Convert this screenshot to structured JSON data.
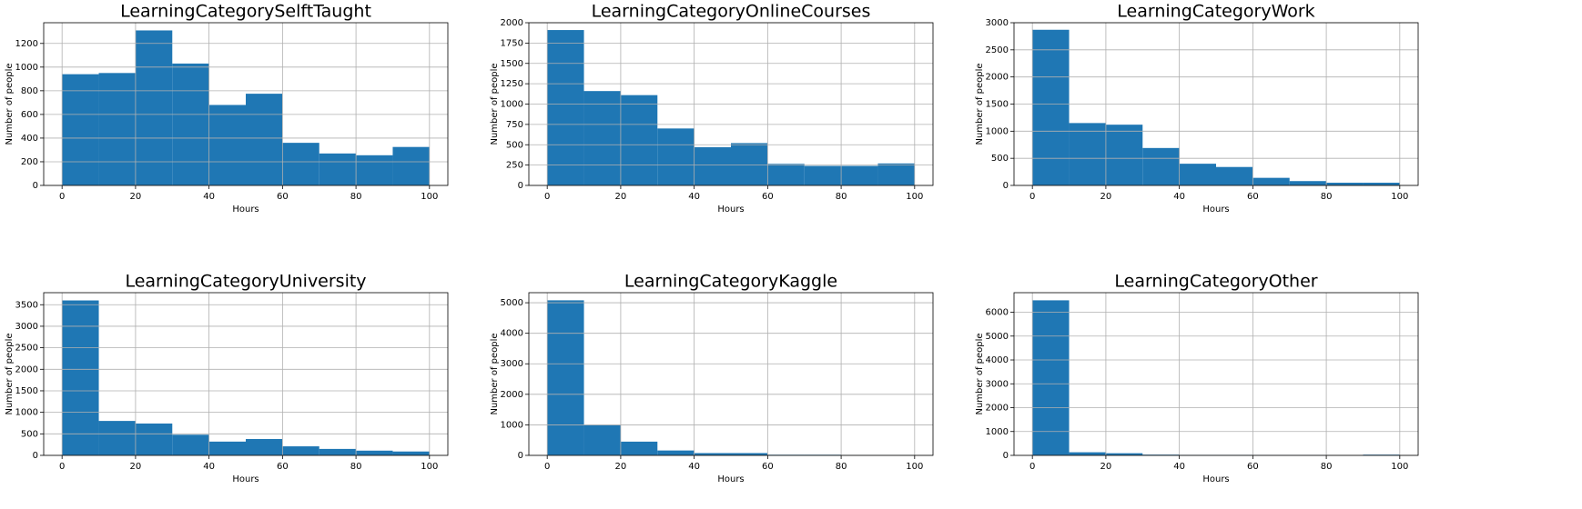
{
  "chart_data": [
    {
      "type": "histogram",
      "title": "LearningCategorySelftTaught",
      "xlabel": "Hours",
      "ylabel": "Number of people",
      "color": "#1f77b4",
      "grid": true,
      "bins": [
        0,
        10,
        20,
        30,
        40,
        50,
        60,
        70,
        80,
        90,
        100
      ],
      "values": [
        940,
        950,
        1310,
        1030,
        680,
        775,
        360,
        270,
        255,
        325
      ],
      "xlim": [
        -5,
        105
      ],
      "xticks": [
        0,
        20,
        40,
        60,
        80,
        100
      ],
      "ylim": [
        0,
        1375
      ],
      "yticks": [
        0,
        200,
        400,
        600,
        800,
        1000,
        1200
      ]
    },
    {
      "type": "histogram",
      "title": "LearningCategoryOnlineCourses",
      "xlabel": "Hours",
      "ylabel": "Number of people",
      "color": "#1f77b4",
      "grid": true,
      "bins": [
        0,
        10,
        20,
        30,
        40,
        50,
        60,
        70,
        80,
        90,
        100
      ],
      "values": [
        1910,
        1160,
        1110,
        700,
        470,
        520,
        265,
        240,
        240,
        270
      ],
      "xlim": [
        -5,
        105
      ],
      "xticks": [
        0,
        20,
        40,
        60,
        80,
        100
      ],
      "ylim": [
        0,
        2000
      ],
      "yticks": [
        0,
        250,
        500,
        750,
        1000,
        1250,
        1500,
        1750,
        2000
      ]
    },
    {
      "type": "histogram",
      "title": "LearningCategoryWork",
      "xlabel": "Hours",
      "ylabel": "Number of people",
      "color": "#1f77b4",
      "grid": true,
      "bins": [
        0,
        10,
        20,
        30,
        40,
        50,
        60,
        70,
        80,
        90,
        100
      ],
      "values": [
        2870,
        1150,
        1120,
        690,
        400,
        340,
        140,
        80,
        50,
        50
      ],
      "xlim": [
        -5,
        105
      ],
      "xticks": [
        0,
        20,
        40,
        60,
        80,
        100
      ],
      "ylim": [
        0,
        3000
      ],
      "yticks": [
        0,
        500,
        1000,
        1500,
        2000,
        2500,
        3000
      ]
    },
    {
      "type": "histogram",
      "title": "LearningCategoryUniversity",
      "xlabel": "Hours",
      "ylabel": "Number of people",
      "color": "#1f77b4",
      "grid": true,
      "bins": [
        0,
        10,
        20,
        30,
        40,
        50,
        60,
        70,
        80,
        90,
        100
      ],
      "values": [
        3600,
        800,
        740,
        480,
        320,
        380,
        210,
        150,
        110,
        90
      ],
      "xlim": [
        -5,
        105
      ],
      "xticks": [
        0,
        20,
        40,
        60,
        80,
        100
      ],
      "ylim": [
        0,
        3780
      ],
      "yticks": [
        0,
        500,
        1000,
        1500,
        2000,
        2500,
        3000,
        3500
      ]
    },
    {
      "type": "histogram",
      "title": "LearningCategoryKaggle",
      "xlabel": "Hours",
      "ylabel": "Number of people",
      "color": "#1f77b4",
      "grid": true,
      "bins": [
        0,
        10,
        20,
        30,
        40,
        50,
        60,
        70,
        80,
        90,
        100
      ],
      "values": [
        5080,
        990,
        450,
        160,
        75,
        75,
        20,
        20,
        5,
        5
      ],
      "xlim": [
        -5,
        105
      ],
      "xticks": [
        0,
        20,
        40,
        60,
        80,
        100
      ],
      "ylim": [
        0,
        5330
      ],
      "yticks": [
        0,
        1000,
        2000,
        3000,
        4000,
        5000
      ]
    },
    {
      "type": "histogram",
      "title": "LearningCategoryOther",
      "xlabel": "Hours",
      "ylabel": "Number of people",
      "color": "#1f77b4",
      "grid": true,
      "bins": [
        0,
        10,
        20,
        30,
        40,
        50,
        60,
        70,
        80,
        90,
        100
      ],
      "values": [
        6500,
        130,
        90,
        30,
        20,
        20,
        15,
        15,
        5,
        30
      ],
      "xlim": [
        -5,
        105
      ],
      "xticks": [
        0,
        20,
        40,
        60,
        80,
        100
      ],
      "ylim": [
        0,
        6820
      ],
      "yticks": [
        0,
        1000,
        2000,
        3000,
        4000,
        5000,
        6000
      ]
    }
  ]
}
